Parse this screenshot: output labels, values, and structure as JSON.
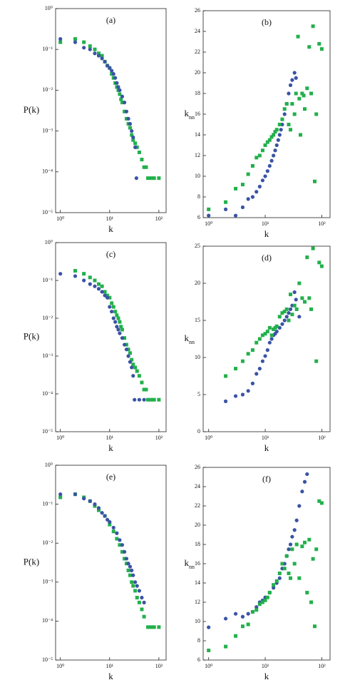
{
  "chart_data": [
    {
      "type": "scatter",
      "title": "(a)",
      "xlabel": "k",
      "ylabel": "P(k)",
      "xscale": "log",
      "yscale": "log",
      "xlim": [
        0.8,
        140
      ],
      "ylim": [
        1e-05,
        1
      ],
      "xticks": [
        {
          "value": 1,
          "label": "10⁰"
        },
        {
          "value": 10,
          "label": "10¹"
        },
        {
          "value": 100,
          "label": "10²"
        }
      ],
      "yticks": [
        {
          "value": 1e-05,
          "label": "10⁻⁵"
        },
        {
          "value": 0.0001,
          "label": "10⁻⁴"
        },
        {
          "value": 0.001,
          "label": "10⁻³"
        },
        {
          "value": 0.01,
          "label": "10⁻²"
        },
        {
          "value": 0.1,
          "label": "10⁻¹"
        },
        {
          "value": 1,
          "label": "10⁰"
        }
      ],
      "series": [
        {
          "color": "#22b04b",
          "marker": "square",
          "x": [
            1,
            2,
            3,
            4,
            5,
            6,
            7,
            8,
            9,
            10,
            11,
            12,
            13,
            14,
            15,
            16,
            17,
            18,
            20,
            22,
            24,
            26,
            28,
            30,
            33,
            36,
            40,
            45,
            50,
            55,
            60,
            70,
            80,
            100
          ],
          "values": [
            0.15,
            0.18,
            0.15,
            0.12,
            0.1,
            0.08,
            0.07,
            0.05,
            0.04,
            0.035,
            0.025,
            0.02,
            0.015,
            0.012,
            0.01,
            0.008,
            0.006,
            0.005,
            0.003,
            0.002,
            0.0015,
            0.0012,
            0.0008,
            0.0006,
            0.0005,
            0.0004,
            0.0003,
            0.0002,
            0.00013,
            0.00013,
            7e-05,
            7e-05,
            7e-05,
            7e-05
          ]
        },
        {
          "color": "#3a53a4",
          "marker": "circle",
          "x": [
            1,
            2,
            3,
            4,
            5,
            6,
            7,
            8,
            9,
            10,
            11,
            12,
            13,
            14,
            15,
            16,
            18,
            20,
            22,
            24,
            26,
            28,
            30,
            33,
            35
          ],
          "values": [
            0.18,
            0.15,
            0.11,
            0.1,
            0.08,
            0.07,
            0.06,
            0.05,
            0.04,
            0.035,
            0.03,
            0.025,
            0.02,
            0.015,
            0.012,
            0.01,
            0.007,
            0.005,
            0.003,
            0.002,
            0.0015,
            0.001,
            0.0007,
            0.0004,
            7e-05
          ]
        }
      ]
    },
    {
      "type": "scatter",
      "title": "(b)",
      "xlabel": "k",
      "ylabel": "k",
      "ylabel_sub": "nn",
      "xscale": "log",
      "yscale": "linear",
      "xlim": [
        0.8,
        140
      ],
      "ylim": [
        6,
        26
      ],
      "xticks": [
        {
          "value": 1,
          "label": "10⁰"
        },
        {
          "value": 10,
          "label": "10¹"
        },
        {
          "value": 100,
          "label": "10²"
        }
      ],
      "yticks": [
        6,
        8,
        10,
        12,
        14,
        16,
        18,
        20,
        22,
        24,
        26
      ],
      "series": [
        {
          "color": "#3a53a4",
          "marker": "circle",
          "x": [
            1,
            2,
            3,
            4,
            5,
            6,
            7,
            8,
            9,
            10,
            11,
            12,
            13,
            14,
            15,
            16,
            17,
            18,
            19,
            20,
            22,
            24,
            26,
            28,
            30,
            33,
            35
          ],
          "values": [
            6.2,
            6.8,
            6.2,
            7.0,
            7.8,
            8.0,
            8.5,
            9,
            9.6,
            10,
            10.5,
            11,
            11.5,
            12,
            12.5,
            13,
            13.5,
            14,
            14.5,
            15,
            16,
            17,
            18,
            18.8,
            19.3,
            20,
            19.5
          ]
        },
        {
          "color": "#22b04b",
          "marker": "square",
          "x": [
            1,
            2,
            3,
            4,
            5,
            6,
            7,
            8,
            9,
            10,
            11,
            12,
            13,
            14,
            15,
            16,
            18,
            20,
            22,
            24,
            26,
            28,
            30,
            33,
            35,
            38,
            40,
            42,
            45,
            48,
            50,
            55,
            60,
            65,
            70,
            75,
            80,
            90,
            100
          ],
          "values": [
            6.8,
            7.5,
            8.8,
            9.2,
            10.2,
            11,
            11.8,
            12,
            12.5,
            13,
            13.3,
            13.5,
            13.8,
            14,
            14.3,
            14.5,
            15,
            15.5,
            16.5,
            17,
            15,
            14.5,
            17,
            16,
            18,
            23.5,
            17.5,
            14,
            18,
            17.8,
            16.5,
            18.5,
            22.5,
            18,
            24.5,
            9.5,
            16,
            22.8,
            22.3
          ]
        }
      ]
    },
    {
      "type": "scatter",
      "title": "(c)",
      "xlabel": "k",
      "ylabel": "P(k)",
      "xscale": "log",
      "yscale": "log",
      "xlim": [
        0.8,
        140
      ],
      "ylim": [
        1e-05,
        1
      ],
      "xticks": [
        {
          "value": 1,
          "label": "10⁰"
        },
        {
          "value": 10,
          "label": "10¹"
        },
        {
          "value": 100,
          "label": "10²"
        }
      ],
      "yticks": [
        {
          "value": 1e-05,
          "label": "10⁻⁵"
        },
        {
          "value": 0.0001,
          "label": "10⁻⁴"
        },
        {
          "value": 0.001,
          "label": "10⁻³"
        },
        {
          "value": 0.01,
          "label": "10⁻²"
        },
        {
          "value": 0.1,
          "label": "10⁻¹"
        },
        {
          "value": 1,
          "label": "10⁰"
        }
      ],
      "series": [
        {
          "color": "#22b04b",
          "marker": "square",
          "x": [
            2,
            3,
            4,
            5,
            6,
            7,
            8,
            9,
            10,
            11,
            12,
            13,
            14,
            15,
            16,
            17,
            18,
            20,
            22,
            24,
            26,
            28,
            30,
            33,
            36,
            40,
            45,
            50,
            55,
            60,
            70,
            80,
            100
          ],
          "values": [
            0.18,
            0.15,
            0.12,
            0.1,
            0.08,
            0.07,
            0.05,
            0.04,
            0.035,
            0.025,
            0.02,
            0.015,
            0.012,
            0.01,
            0.008,
            0.006,
            0.005,
            0.003,
            0.002,
            0.0015,
            0.0012,
            0.0008,
            0.0006,
            0.0005,
            0.0004,
            0.0003,
            0.0002,
            0.00013,
            0.00013,
            7e-05,
            7e-05,
            7e-05,
            7e-05
          ]
        },
        {
          "color": "#3a53a4",
          "marker": "circle",
          "x": [
            1,
            2,
            3,
            4,
            5,
            6,
            7,
            8,
            9,
            10,
            11,
            12,
            13,
            14,
            15,
            16,
            18,
            20,
            22,
            24,
            26,
            28,
            30,
            32,
            40,
            50
          ],
          "values": [
            0.15,
            0.13,
            0.1,
            0.08,
            0.07,
            0.06,
            0.05,
            0.04,
            0.035,
            0.02,
            0.015,
            0.01,
            0.008,
            0.006,
            0.005,
            0.004,
            0.003,
            0.002,
            0.0015,
            0.001,
            0.0007,
            0.0005,
            0.0003,
            7e-05,
            7e-05,
            7e-05
          ]
        }
      ]
    },
    {
      "type": "scatter",
      "title": "(d)",
      "xlabel": "k",
      "ylabel": "k",
      "ylabel_sub": "nn",
      "xscale": "log",
      "yscale": "linear",
      "xlim": [
        0.8,
        140
      ],
      "ylim": [
        0,
        25
      ],
      "xticks": [
        {
          "value": 1,
          "label": "10⁰"
        },
        {
          "value": 10,
          "label": "10¹"
        },
        {
          "value": 100,
          "label": "10²"
        }
      ],
      "yticks": [
        0,
        5,
        10,
        15,
        20,
        25
      ],
      "series": [
        {
          "color": "#3a53a4",
          "marker": "circle",
          "x": [
            2,
            3,
            4,
            5,
            6,
            7,
            8,
            9,
            10,
            11,
            12,
            13,
            14,
            15,
            16,
            18,
            20,
            22,
            24,
            26,
            28,
            30,
            33,
            35,
            40
          ],
          "values": [
            4.1,
            4.8,
            5,
            5.5,
            6.5,
            7.8,
            8.5,
            9.5,
            10.2,
            11,
            12,
            12.5,
            13,
            13.2,
            13.5,
            14,
            14.5,
            15,
            15.5,
            16,
            16.5,
            17,
            18.8,
            17.8,
            15.5
          ]
        },
        {
          "color": "#22b04b",
          "marker": "square",
          "x": [
            2,
            3,
            4,
            5,
            6,
            7,
            8,
            9,
            10,
            11,
            12,
            13,
            14,
            15,
            16,
            18,
            20,
            22,
            24,
            26,
            28,
            30,
            33,
            36,
            40,
            45,
            50,
            55,
            60,
            65,
            70,
            80,
            90,
            100
          ],
          "values": [
            7.5,
            8.5,
            9.5,
            10.5,
            11,
            12,
            12.5,
            13,
            13.2,
            13.5,
            14,
            13,
            13.8,
            14,
            14.2,
            15.5,
            16,
            16.2,
            16.5,
            15,
            18.5,
            15.8,
            17,
            16.5,
            20,
            18,
            17.5,
            23.5,
            18,
            16.5,
            24.7,
            9.5,
            22.8,
            22.3
          ]
        }
      ]
    },
    {
      "type": "scatter",
      "title": "(e)",
      "xlabel": "k",
      "ylabel": "P(k)",
      "xscale": "log",
      "yscale": "log",
      "xlim": [
        0.8,
        140
      ],
      "ylim": [
        1e-05,
        1
      ],
      "xticks": [
        {
          "value": 1,
          "label": "10⁰"
        },
        {
          "value": 10,
          "label": "10¹"
        },
        {
          "value": 100,
          "label": "10²"
        }
      ],
      "yticks": [
        {
          "value": 1e-05,
          "label": "10⁻⁵"
        },
        {
          "value": 0.0001,
          "label": "10⁻⁴"
        },
        {
          "value": 0.001,
          "label": "10⁻³"
        },
        {
          "value": 0.01,
          "label": "10⁻²"
        },
        {
          "value": 0.1,
          "label": "10⁻¹"
        },
        {
          "value": 1,
          "label": "10⁰"
        }
      ],
      "series": [
        {
          "color": "#22b04b",
          "marker": "square",
          "x": [
            1,
            2,
            3,
            4,
            5,
            6,
            8,
            10,
            12,
            14,
            16,
            18,
            20,
            22,
            24,
            26,
            28,
            30,
            33,
            36,
            40,
            45,
            50,
            60,
            70,
            80,
            100
          ],
          "values": [
            0.15,
            0.18,
            0.15,
            0.12,
            0.09,
            0.07,
            0.05,
            0.03,
            0.02,
            0.013,
            0.009,
            0.006,
            0.004,
            0.003,
            0.002,
            0.0015,
            0.001,
            0.0008,
            0.0006,
            0.0004,
            0.0003,
            0.0002,
            0.00013,
            7e-05,
            7e-05,
            7e-05,
            7e-05
          ]
        },
        {
          "color": "#3a53a4",
          "marker": "circle",
          "x": [
            1,
            2,
            3,
            4,
            5,
            6,
            7,
            8,
            9,
            10,
            12,
            14,
            16,
            18,
            20,
            22,
            24,
            26,
            28,
            30,
            33,
            36,
            40,
            45,
            50
          ],
          "values": [
            0.18,
            0.18,
            0.14,
            0.12,
            0.1,
            0.08,
            0.06,
            0.05,
            0.04,
            0.035,
            0.025,
            0.018,
            0.012,
            0.009,
            0.006,
            0.004,
            0.003,
            0.0025,
            0.002,
            0.0015,
            0.001,
            0.0008,
            0.0006,
            0.0004,
            0.0003
          ]
        }
      ]
    },
    {
      "type": "scatter",
      "title": "(f)",
      "xlabel": "k",
      "ylabel": "k",
      "ylabel_sub": "nn",
      "xscale": "log",
      "yscale": "linear",
      "xlim": [
        0.8,
        140
      ],
      "ylim": [
        6,
        26
      ],
      "xticks": [
        {
          "value": 1,
          "label": "10⁰"
        },
        {
          "value": 10,
          "label": "10¹"
        },
        {
          "value": 100,
          "label": "10²"
        }
      ],
      "yticks": [
        6,
        8,
        10,
        12,
        14,
        16,
        18,
        20,
        22,
        24,
        26
      ],
      "series": [
        {
          "color": "#3a53a4",
          "marker": "circle",
          "x": [
            1,
            2,
            3,
            4,
            5,
            6,
            7,
            8,
            9,
            10,
            12,
            14,
            16,
            18,
            20,
            22,
            24,
            26,
            28,
            30,
            33,
            36,
            40,
            45,
            50,
            55
          ],
          "values": [
            9.4,
            10.3,
            10.8,
            10.5,
            10.8,
            11,
            11.5,
            12,
            12.2,
            12.5,
            13,
            13.5,
            14,
            14.5,
            15.5,
            16,
            16.8,
            17.5,
            18,
            18.8,
            19.5,
            20.5,
            22,
            23.5,
            24.5,
            25.3
          ]
        },
        {
          "color": "#22b04b",
          "marker": "square",
          "x": [
            1,
            2,
            3,
            4,
            5,
            6,
            7,
            8,
            9,
            10,
            11,
            12,
            14,
            16,
            18,
            20,
            22,
            24,
            26,
            28,
            30,
            33,
            36,
            40,
            45,
            50,
            55,
            60,
            65,
            70,
            75,
            80,
            90,
            100
          ],
          "values": [
            7,
            7.4,
            8.5,
            9.5,
            9.7,
            11,
            11.2,
            11.8,
            12,
            12.2,
            12.5,
            13,
            13.8,
            14.2,
            15,
            16,
            15.5,
            16.8,
            15,
            14.5,
            17.5,
            16,
            18,
            14.5,
            17.8,
            18.2,
            13,
            18.5,
            12,
            16.5,
            9.5,
            17.5,
            22.5,
            22.3
          ]
        }
      ]
    }
  ]
}
